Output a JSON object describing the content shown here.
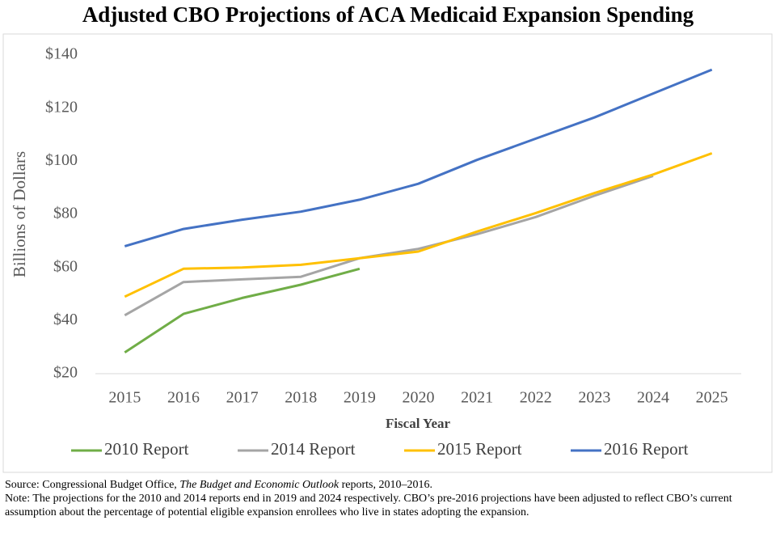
{
  "chart_data": {
    "type": "line",
    "title": "Adjusted CBO Projections of ACA Medicaid Expansion Spending",
    "x_label": "Fiscal Year",
    "y_label": "Billions of Dollars",
    "categories": [
      "2015",
      "2016",
      "2017",
      "2018",
      "2019",
      "2020",
      "2021",
      "2022",
      "2023",
      "2024",
      "2025"
    ],
    "series": [
      {
        "name": "2010 Report",
        "color": "#70ad47",
        "values": [
          28,
          42.5,
          48.5,
          53.5,
          59.5,
          null,
          null,
          null,
          null,
          null,
          null
        ]
      },
      {
        "name": "2014 Report",
        "color": "#a5a5a5",
        "values": [
          42,
          54.5,
          55.5,
          56.5,
          63.5,
          67,
          72.5,
          79,
          87,
          94.5,
          null
        ]
      },
      {
        "name": "2015 Report",
        "color": "#ffc000",
        "values": [
          49,
          59.5,
          60,
          61,
          63.5,
          66,
          73.5,
          80.5,
          88,
          95,
          103
        ]
      },
      {
        "name": "2016 Report",
        "color": "#4472c4",
        "values": [
          68,
          74.5,
          78,
          81,
          85.5,
          91.5,
          100.5,
          108.5,
          116.5,
          125.5,
          134.5
        ]
      }
    ],
    "ylim": [
      20,
      140
    ],
    "yticks": [
      {
        "value": 20,
        "label": "$20"
      },
      {
        "value": 40,
        "label": "$40"
      },
      {
        "value": 60,
        "label": "$60"
      },
      {
        "value": 80,
        "label": "$80"
      },
      {
        "value": 100,
        "label": "$100"
      },
      {
        "value": 120,
        "label": "$120"
      },
      {
        "value": 140,
        "label": "$140"
      }
    ],
    "grid": false,
    "legend": "bottom",
    "source": {
      "before": "Source: Congressional Budget Office, ",
      "italic": "The Budget and Economic Outlook",
      "after": " reports, 2010–2016."
    },
    "note": "Note: The projections for the 2010 and 2014 reports end in 2019 and 2024 respectively. CBO’s pre-2016 projections have been adjusted to reflect CBO’s current assumption about the percentage of potential eligible expansion enrollees who live in states adopting the expansion."
  }
}
